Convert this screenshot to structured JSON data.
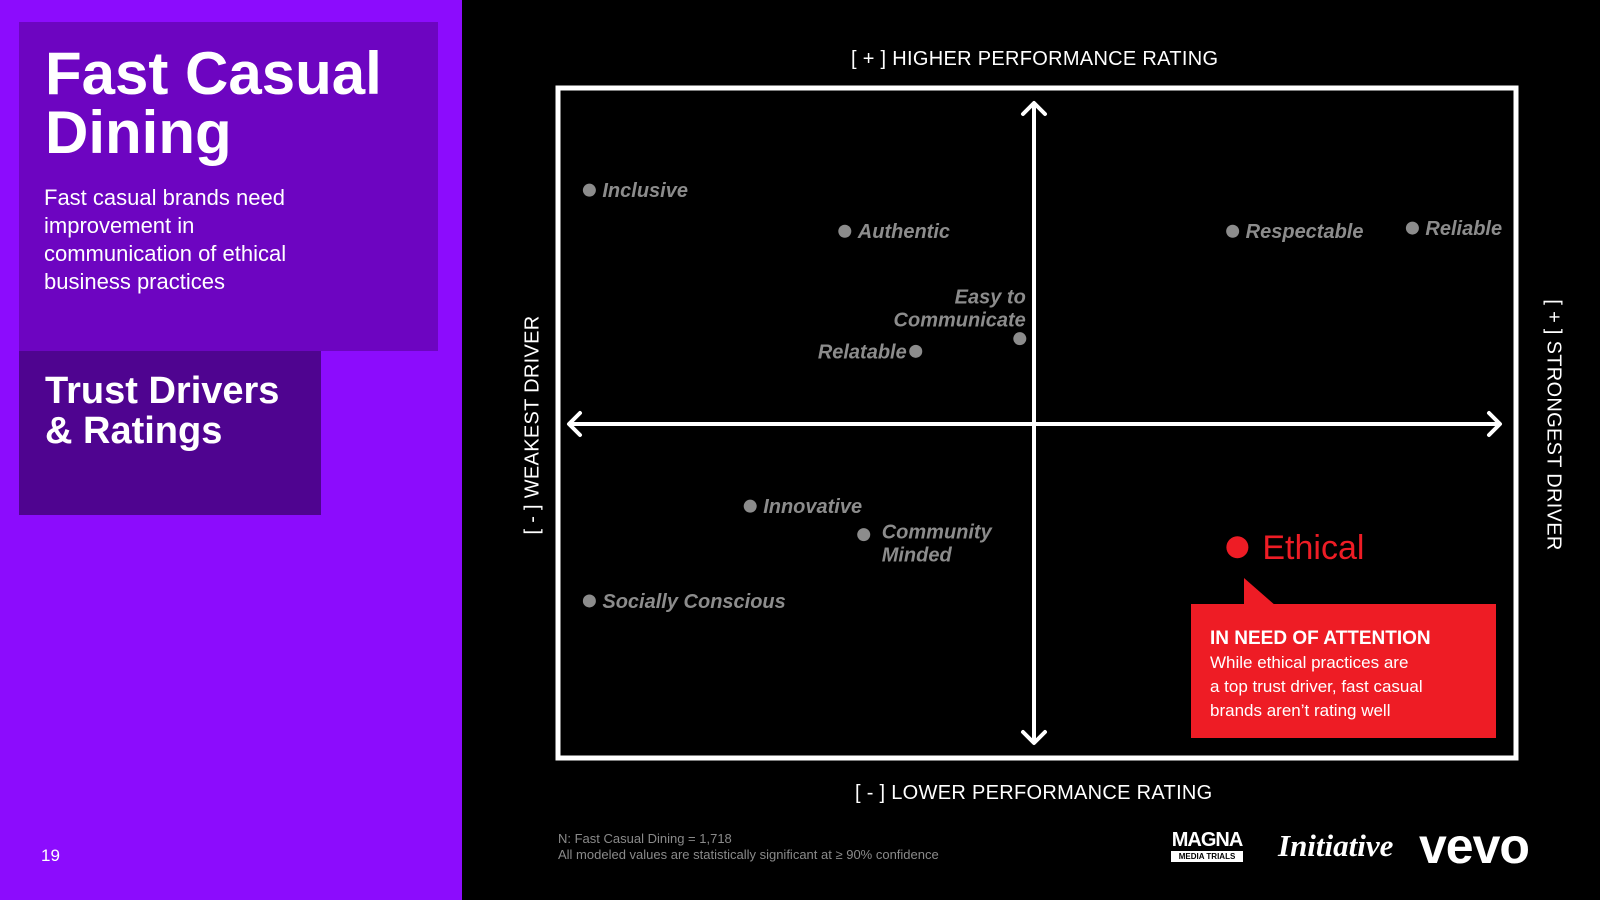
{
  "slide": {
    "title": "Fast Casual\nDining",
    "description": "Fast casual brands need improvement in communication of ethical business practices",
    "section": "Trust Drivers\n& Ratings",
    "page_number": "19"
  },
  "chart_data": {
    "type": "scatter",
    "title": "",
    "y_axis": {
      "top_label": "[ + ]  HIGHER PERFORMANCE RATING",
      "bottom_label": "[ - ]  LOWER PERFORMANCE RATING",
      "range": [
        -5,
        5
      ]
    },
    "x_axis": {
      "left_label": "[ - ]  WEAKEST DRIVER",
      "right_label": "[ + ]  STRONGEST DRIVER",
      "range": [
        -5,
        5
      ]
    },
    "grid": false,
    "points": [
      {
        "label": "Inclusive",
        "x": -4.7,
        "y": 3.7,
        "label_side": "right",
        "highlight": false
      },
      {
        "label": "Authentic",
        "x": -2.0,
        "y": 3.05,
        "label_side": "right",
        "highlight": false
      },
      {
        "label": "Respectable",
        "x": 2.1,
        "y": 3.05,
        "label_side": "right",
        "highlight": false
      },
      {
        "label": "Reliable",
        "x": 4.0,
        "y": 3.1,
        "label_side": "right",
        "highlight": false
      },
      {
        "label": "Easy to\nCommunicate",
        "x": -0.15,
        "y": 1.35,
        "label_side": "above-left",
        "highlight": false
      },
      {
        "label": "Relatable",
        "x": -1.25,
        "y": 1.15,
        "label_side": "left",
        "highlight": false
      },
      {
        "label": "Innovative",
        "x": -3.0,
        "y": -1.3,
        "label_side": "right",
        "highlight": false
      },
      {
        "label": "Community\nMinded",
        "x": -1.8,
        "y": -1.75,
        "label_side": "right",
        "highlight": false
      },
      {
        "label": "Socially Conscious",
        "x": -4.7,
        "y": -2.8,
        "label_side": "right",
        "highlight": false
      },
      {
        "label": "Ethical",
        "x": 2.15,
        "y": -1.95,
        "label_side": "right",
        "highlight": true
      }
    ],
    "callout": {
      "heading": "IN NEED OF ATTENTION",
      "body": "While ethical practices are\na top trust driver, fast casual\nbrands aren’t rating well"
    },
    "colors": {
      "point": "#8c8c8c",
      "highlight": "#ee1c25",
      "axes": "#ffffff",
      "frame": "#ffffff"
    }
  },
  "footnote": {
    "line1": "N: Fast Casual Dining = 1,718",
    "line2": "All modeled values are statistically significant at ≥ 90% confidence"
  },
  "logos": {
    "magna": "MAGNA",
    "magna_sub": "MEDIA TRIALS",
    "initiative": "Initiative",
    "vevo": "vevo"
  },
  "colors": {
    "left_panel": "#8c0cfd",
    "title_card": "#6d05c1",
    "section_card": "#4f0490",
    "background": "#000000"
  }
}
